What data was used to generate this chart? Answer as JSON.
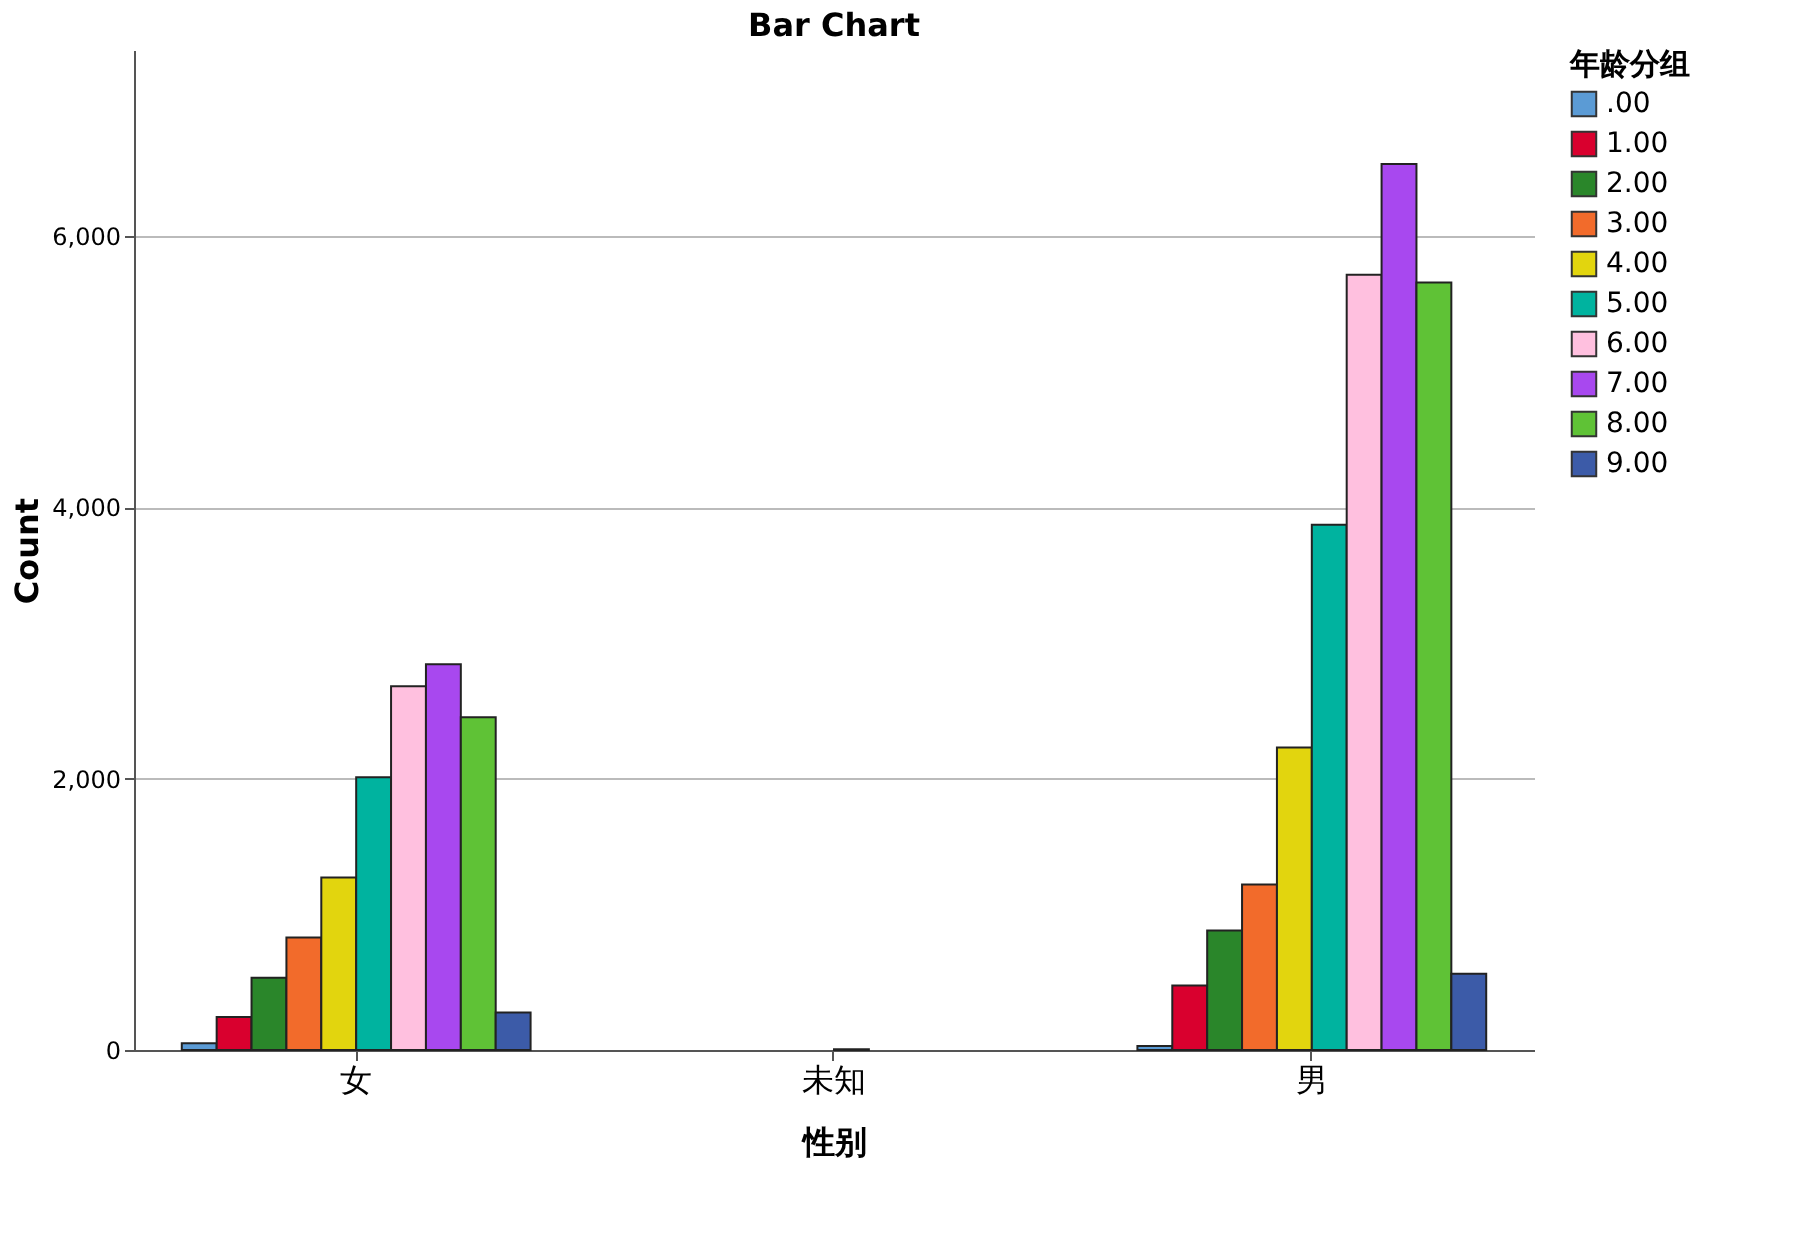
{
  "chart_data": {
    "type": "bar",
    "title": "Bar Chart",
    "xlabel": "性别",
    "ylabel": "Count",
    "legend_title": "年龄分组",
    "categories": [
      "女",
      "未知",
      "男"
    ],
    "series": [
      {
        "name": ".00",
        "color": "#5b9bd5",
        "values": [
          50,
          null,
          30
        ]
      },
      {
        "name": "1.00",
        "color": "#d9002e",
        "values": [
          243,
          null,
          476
        ]
      },
      {
        "name": "2.00",
        "color": "#2a862a",
        "values": [
          533,
          null,
          881
        ]
      },
      {
        "name": "3.00",
        "color": "#f26b2b",
        "values": [
          829,
          null,
          1219
        ]
      },
      {
        "name": "4.00",
        "color": "#e2d50e",
        "values": [
          1271,
          null,
          2229
        ]
      },
      {
        "name": "5.00",
        "color": "#00b39f",
        "values": [
          2010,
          5,
          3871
        ]
      },
      {
        "name": "6.00",
        "color": "#ffc0df",
        "values": [
          2681,
          null,
          5714
        ]
      },
      {
        "name": "7.00",
        "color": "#a848ef",
        "values": [
          2843,
          null,
          6529
        ]
      },
      {
        "name": "8.00",
        "color": "#5fc236",
        "values": [
          2452,
          null,
          5657
        ]
      },
      {
        "name": "9.00",
        "color": "#3c5ba8",
        "values": [
          276,
          null,
          562
        ]
      }
    ],
    "ylim": [
      0,
      7370
    ],
    "yticks": [
      {
        "value": 0,
        "label": "0"
      },
      {
        "value": 2000,
        "label": "2,000"
      },
      {
        "value": 4000,
        "label": "4,000"
      },
      {
        "value": 6000,
        "label": "6,000"
      }
    ],
    "grid": "y",
    "legend": "top right"
  }
}
